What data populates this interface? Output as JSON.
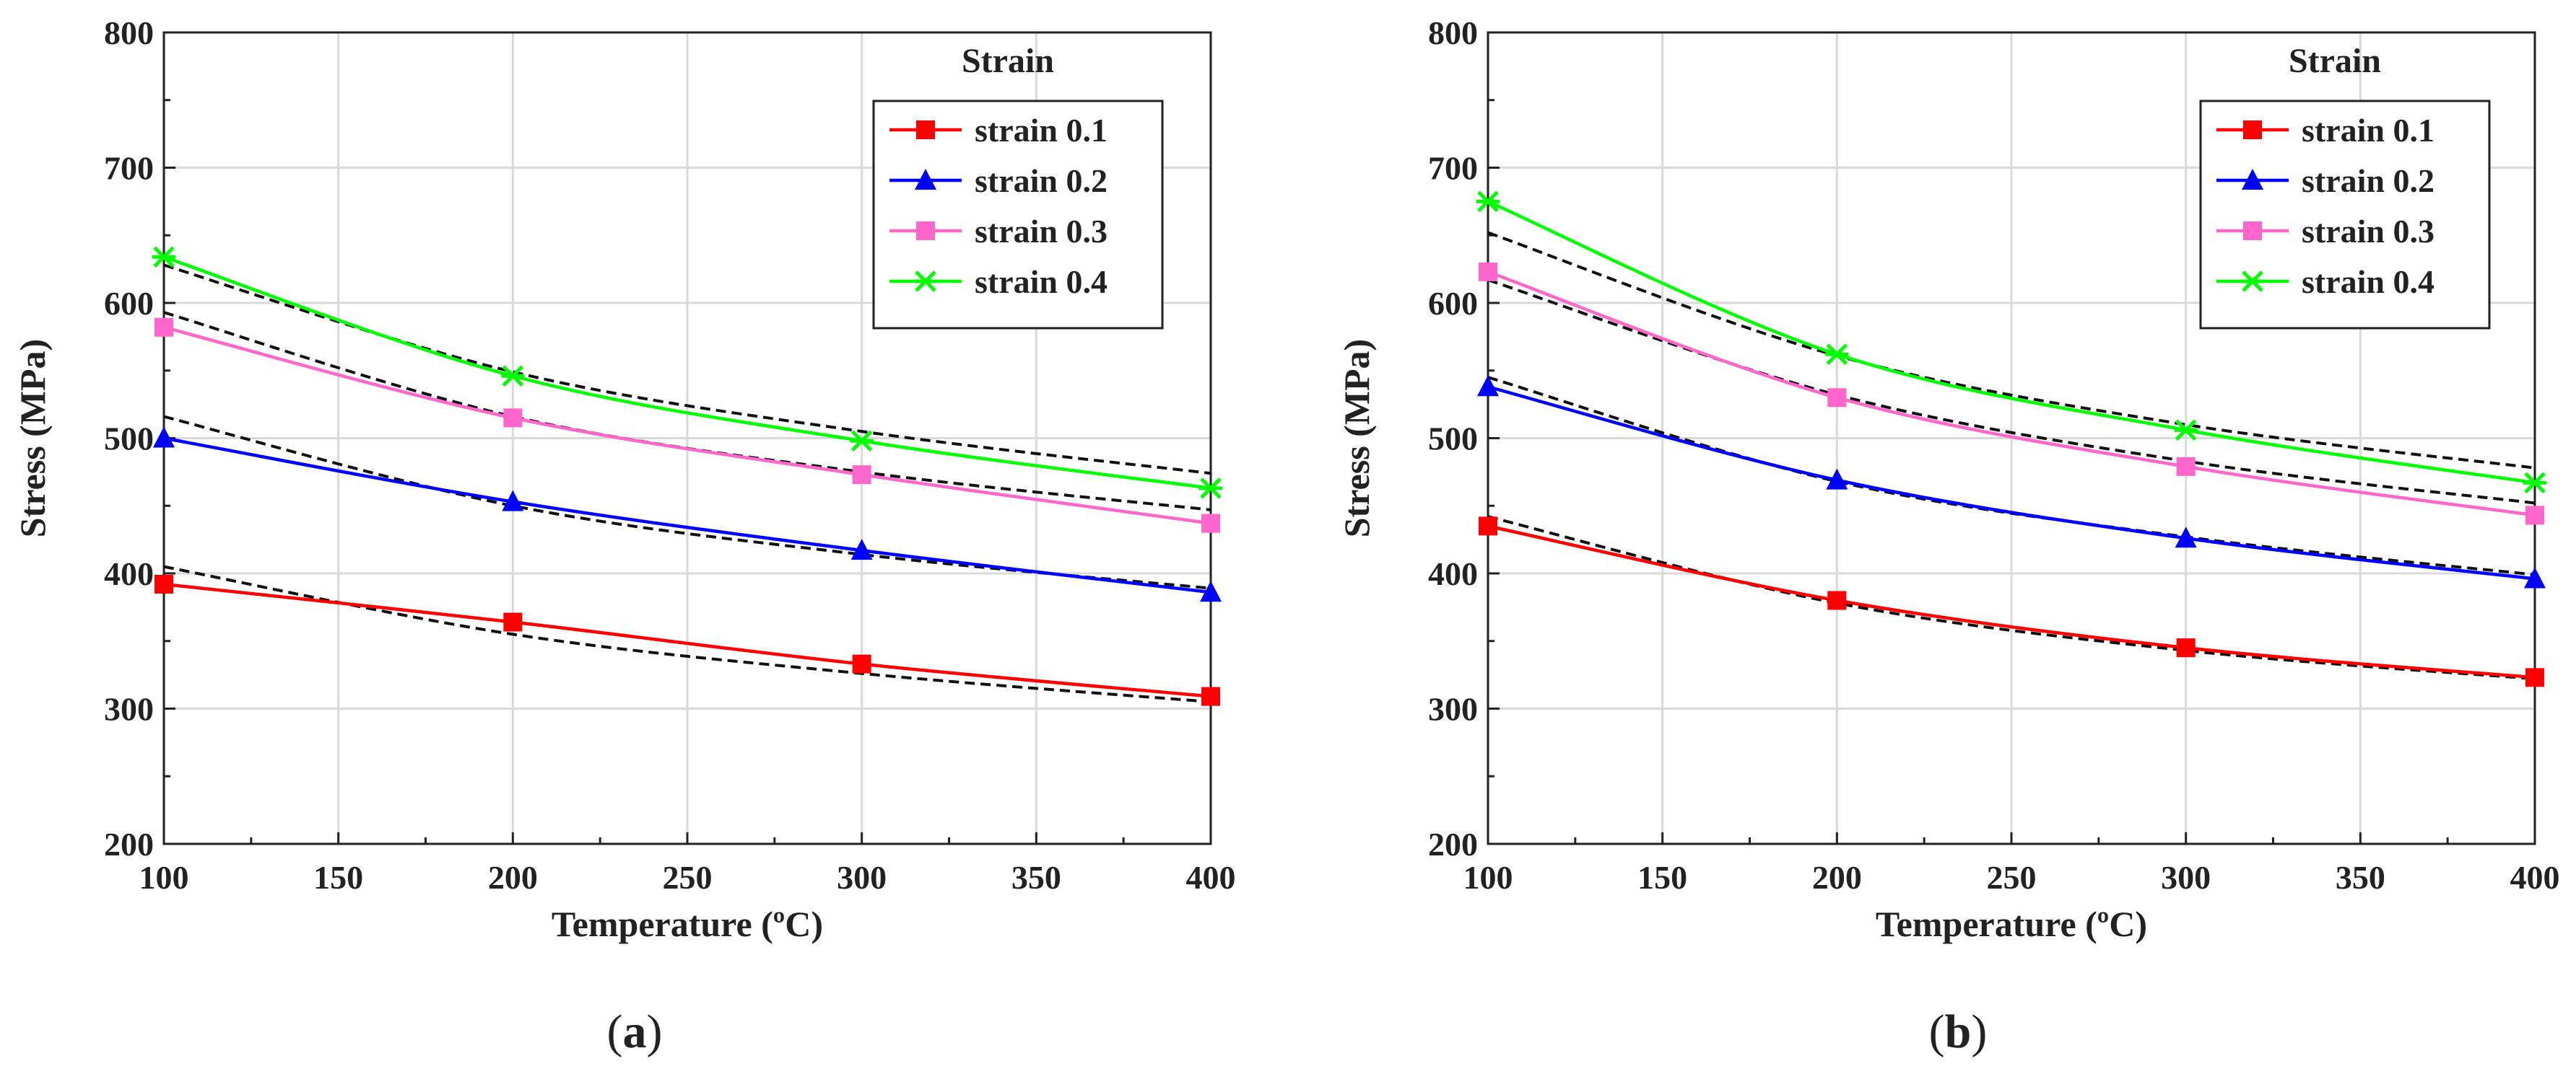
{
  "chart_data": [
    {
      "type": "line",
      "panel_label": "(a)",
      "xlabel": "Temperature (ºC)",
      "ylabel": "Stress (MPa)",
      "xlim": [
        100,
        400
      ],
      "ylim": [
        200,
        800
      ],
      "xticks": [
        100,
        150,
        200,
        250,
        300,
        350,
        400
      ],
      "yticks": [
        200,
        300,
        400,
        500,
        600,
        700,
        800
      ],
      "grid": true,
      "legend_title": "Strain",
      "legend_position": "top-right",
      "x": [
        100,
        200,
        300,
        400
      ],
      "series": [
        {
          "name": "strain 0.1",
          "color": "#ff0000",
          "marker": "square",
          "values": [
            392,
            364,
            333,
            309
          ],
          "fit": [
            405,
            355,
            326,
            305
          ]
        },
        {
          "name": "strain 0.2",
          "color": "#0000ff",
          "marker": "triangle",
          "values": [
            500,
            453,
            417,
            386
          ],
          "fit": [
            516,
            450,
            414,
            389
          ]
        },
        {
          "name": "strain 0.3",
          "color": "#ff66cc",
          "marker": "square",
          "values": [
            582,
            515,
            473,
            437
          ],
          "fit": [
            593,
            516,
            475,
            447
          ]
        },
        {
          "name": "strain 0.4",
          "color": "#00ff00",
          "marker": "star",
          "values": [
            634,
            546,
            498,
            463
          ],
          "fit": [
            628,
            549,
            505,
            474
          ]
        }
      ],
      "fit_style": "black dashed"
    },
    {
      "type": "line",
      "panel_label": "(b)",
      "xlabel": "Temperature (ºC)",
      "ylabel": "Stress (MPa)",
      "xlim": [
        100,
        400
      ],
      "ylim": [
        200,
        800
      ],
      "xticks": [
        100,
        150,
        200,
        250,
        300,
        350,
        400
      ],
      "yticks": [
        200,
        300,
        400,
        500,
        600,
        700,
        800
      ],
      "grid": true,
      "legend_title": "Strain",
      "legend_position": "top-right",
      "x": [
        100,
        200,
        300,
        400
      ],
      "series": [
        {
          "name": "strain 0.1",
          "color": "#ff0000",
          "marker": "square",
          "values": [
            435,
            380,
            345,
            323
          ],
          "fit": [
            442,
            378,
            343,
            322
          ]
        },
        {
          "name": "strain 0.2",
          "color": "#0000ff",
          "marker": "triangle",
          "values": [
            538,
            469,
            426,
            396
          ],
          "fit": [
            545,
            468,
            427,
            399
          ]
        },
        {
          "name": "strain 0.3",
          "color": "#ff66cc",
          "marker": "square",
          "values": [
            623,
            530,
            479,
            443
          ],
          "fit": [
            617,
            532,
            483,
            452
          ]
        },
        {
          "name": "strain 0.4",
          "color": "#00ff00",
          "marker": "star",
          "values": [
            675,
            562,
            506,
            467
          ],
          "fit": [
            652,
            561,
            510,
            478
          ]
        }
      ],
      "fit_style": "black dashed"
    }
  ]
}
